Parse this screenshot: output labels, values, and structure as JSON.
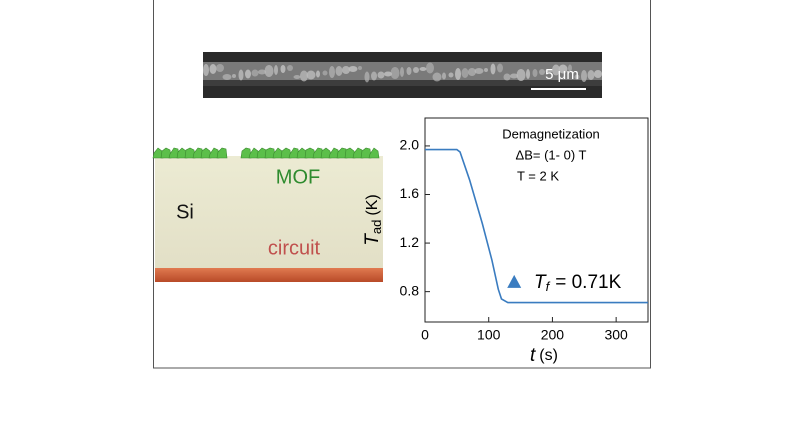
{
  "sem": {
    "scale_bar": "5 μm"
  },
  "schematic": {
    "top_layer": "MOF",
    "substrate": "Si",
    "bottom_layer": "circuit"
  },
  "chart_data": {
    "type": "line",
    "x": [
      0,
      50,
      55,
      70,
      90,
      105,
      115,
      120,
      130,
      150,
      200,
      350
    ],
    "series": [
      {
        "color": "#3a7cc0",
        "values": [
          1.97,
          1.97,
          1.95,
          1.72,
          1.36,
          1.06,
          0.82,
          0.74,
          0.71,
          0.71,
          0.71,
          0.71
        ]
      }
    ],
    "xlim": [
      0,
      350
    ],
    "ylim": [
      0.55,
      2.23
    ],
    "xticks": [
      0,
      100,
      200,
      300
    ],
    "yticks": [
      0.8,
      1.2,
      1.6,
      {
        "value": 2,
        "label": "2.0"
      }
    ],
    "xlabel": {
      "symbol": "t",
      "unit": "(s)"
    },
    "ylabel": {
      "symbol": "T",
      "subscript": "ad",
      "unit": "(K)"
    },
    "annotations": [
      "Demagnetization",
      "ΔB= (1- 0) T",
      "T = 2 K"
    ],
    "marker": {
      "x": 140,
      "y": 0.88,
      "color": "#3a7cc0"
    },
    "result": {
      "symbol": "T",
      "subscript": "f",
      "text": "= 0.71K"
    }
  }
}
